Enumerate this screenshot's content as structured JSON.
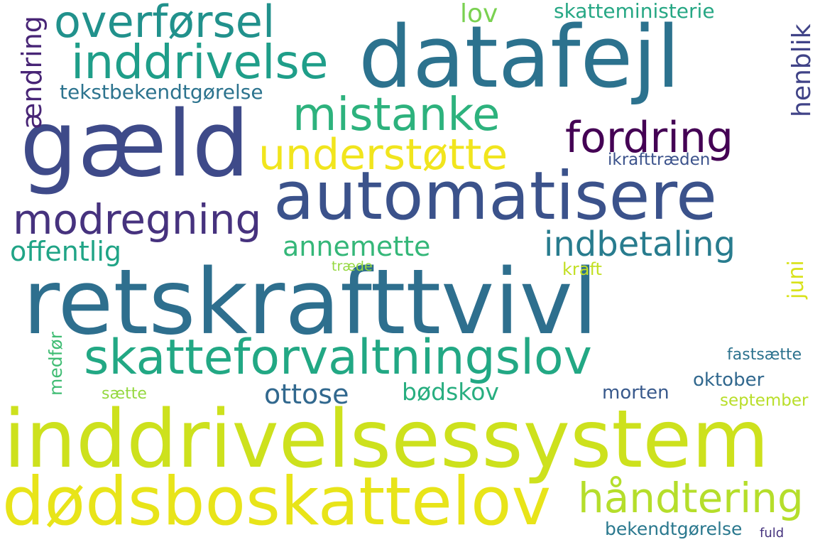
{
  "words": [
    {
      "id": "retskrafttvivl",
      "text": "retskrafttvivl",
      "color": "#2e6f8e"
    },
    {
      "id": "inddrivelsessystem",
      "text": "inddrivelsessystem",
      "color": "#cde11d"
    },
    {
      "id": "datafejl",
      "text": "datafejl",
      "color": "#2c728e"
    },
    {
      "id": "automatisere",
      "text": "automatisere",
      "color": "#3b528b"
    },
    {
      "id": "gaeld",
      "text": "gæld",
      "color": "#3e4a89"
    },
    {
      "id": "dodsboskattelov",
      "text": "dødsboskattelov",
      "color": "#e8e419"
    },
    {
      "id": "skatteforvaltningslov",
      "text": "skatteforvaltningslov",
      "color": "#22a884"
    },
    {
      "id": "inddrivelse",
      "text": "inddrivelse",
      "color": "#1f9e89"
    },
    {
      "id": "overforsel",
      "text": "overførsel",
      "color": "#21918c"
    },
    {
      "id": "mistanke",
      "text": "mistanke",
      "color": "#2db27d"
    },
    {
      "id": "fordring",
      "text": "fordring",
      "color": "#440154"
    },
    {
      "id": "understotte",
      "text": "understøtte",
      "color": "#f1e51d"
    },
    {
      "id": "modregning",
      "text": "modregning",
      "color": "#46327e"
    },
    {
      "id": "handtering",
      "text": "håndtering",
      "color": "#b5de2b"
    },
    {
      "id": "indbetaling",
      "text": "indbetaling",
      "color": "#287c8e"
    },
    {
      "id": "annemette",
      "text": "annemette",
      "color": "#35b779"
    },
    {
      "id": "offentlig",
      "text": "offentlig",
      "color": "#20a486"
    },
    {
      "id": "ottose",
      "text": "ottose",
      "color": "#31688e"
    },
    {
      "id": "bodskov",
      "text": "bødskov",
      "color": "#28ae80"
    },
    {
      "id": "skatteministerie",
      "text": "skatteministerie",
      "color": "#26a784"
    },
    {
      "id": "tekstbekendtgorelse",
      "text": "tekstbekendtgørelse",
      "color": "#2c738e"
    },
    {
      "id": "lov",
      "text": "lov",
      "color": "#7ad151"
    },
    {
      "id": "ikrafttraeden",
      "text": "ikrafttræden",
      "color": "#3b528b"
    },
    {
      "id": "morten",
      "text": "morten",
      "color": "#38598c"
    },
    {
      "id": "oktober",
      "text": "oktober",
      "color": "#31688e"
    },
    {
      "id": "september",
      "text": "september",
      "color": "#b8de29"
    },
    {
      "id": "bekendtgorelse",
      "text": "bekendtgørelse",
      "color": "#2a788e"
    },
    {
      "id": "fuld",
      "text": "fuld",
      "color": "#46337e"
    },
    {
      "id": "fastsaette",
      "text": "fastsætte",
      "color": "#2c728e"
    },
    {
      "id": "kraft",
      "text": "kraft",
      "color": "#c2df23"
    },
    {
      "id": "traede",
      "text": "træde",
      "color": "#95d840"
    },
    {
      "id": "saette",
      "text": "sætte",
      "color": "#95d840"
    },
    {
      "id": "andring",
      "text": "ændring",
      "color": "#482576"
    },
    {
      "id": "henblik",
      "text": "henblik",
      "color": "#404387"
    },
    {
      "id": "juni",
      "text": "juni",
      "color": "#d8e219"
    },
    {
      "id": "medfor",
      "text": "medfør",
      "color": "#3fbc73"
    }
  ]
}
